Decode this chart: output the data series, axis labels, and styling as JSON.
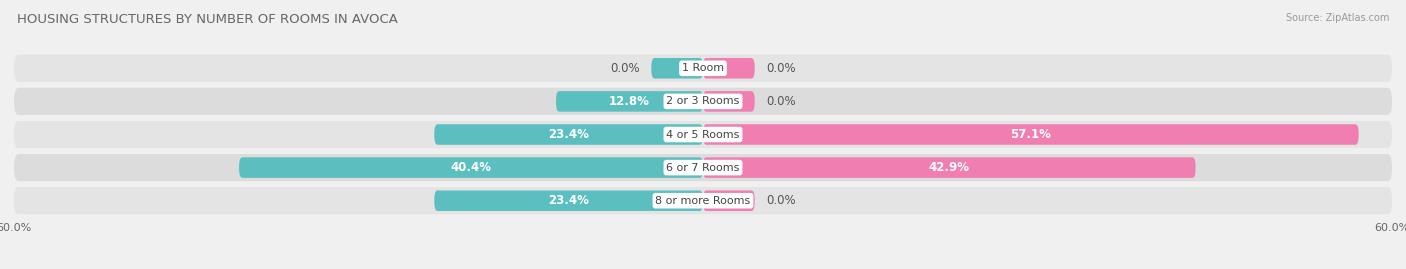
{
  "title": "HOUSING STRUCTURES BY NUMBER OF ROOMS IN AVOCA",
  "source": "Source: ZipAtlas.com",
  "categories": [
    "1 Room",
    "2 or 3 Rooms",
    "4 or 5 Rooms",
    "6 or 7 Rooms",
    "8 or more Rooms"
  ],
  "owner_values": [
    0.0,
    12.8,
    23.4,
    40.4,
    23.4
  ],
  "renter_values": [
    0.0,
    0.0,
    57.1,
    42.9,
    0.0
  ],
  "owner_color": "#5BBFBF",
  "renter_color": "#F07EB0",
  "axis_max": 60.0,
  "bg_color": "#f0f0f0",
  "row_bg_light": "#e8e8e8",
  "row_bg_dark": "#dcdcdc",
  "bar_height": 0.62,
  "title_fontsize": 9.5,
  "label_fontsize": 8.5,
  "tick_fontsize": 8,
  "inside_label_threshold": 8.0,
  "small_bar_owner": [
    0.0,
    0.0
  ],
  "small_bar_renter": [
    0.0,
    0.0
  ],
  "note_1room_owner": 5.5,
  "note_1room_renter": 5.5
}
